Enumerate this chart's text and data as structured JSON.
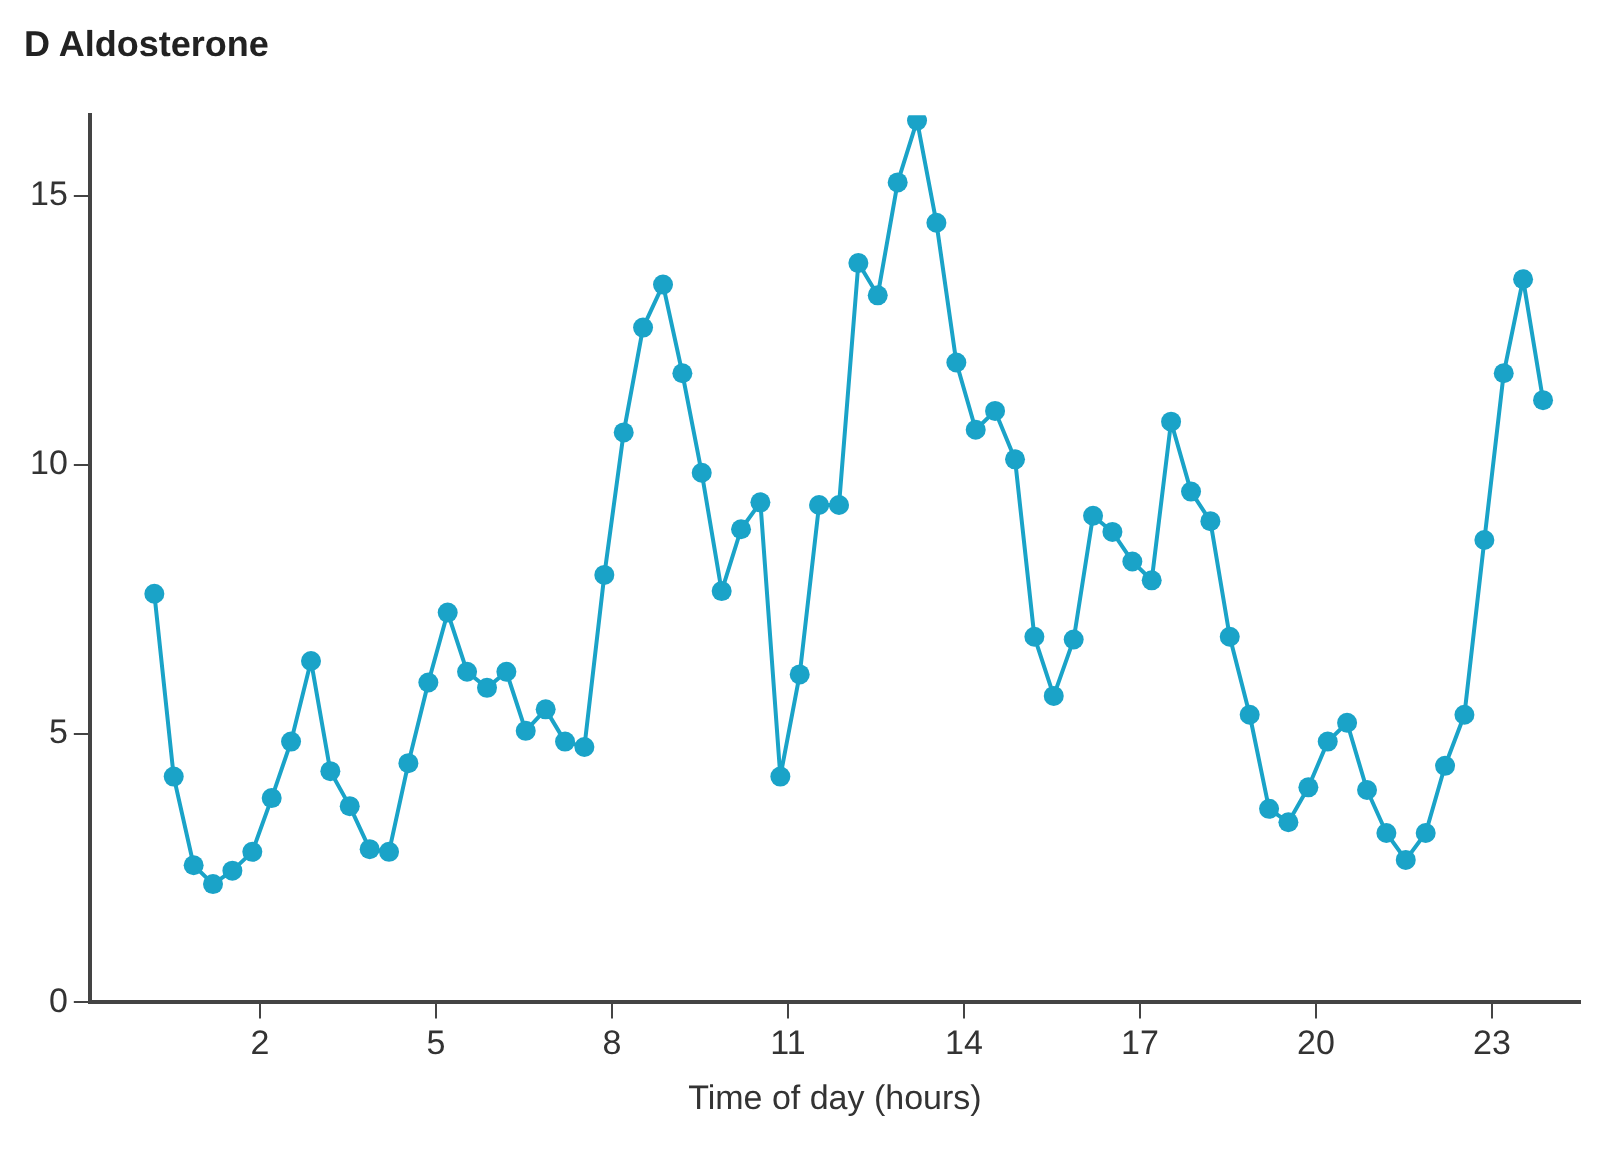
{
  "chart_data": {
    "type": "line",
    "title": "D Aldosterone",
    "xlabel": "Time of day (hours)",
    "x": [
      0.2,
      0.53,
      0.87,
      1.2,
      1.53,
      1.87,
      2.2,
      2.53,
      2.87,
      3.2,
      3.53,
      3.87,
      4.2,
      4.53,
      4.87,
      5.2,
      5.53,
      5.87,
      6.2,
      6.53,
      6.87,
      7.2,
      7.53,
      7.87,
      8.2,
      8.53,
      8.87,
      9.2,
      9.53,
      9.87,
      10.2,
      10.53,
      10.87,
      11.2,
      11.53,
      11.87,
      12.2,
      12.53,
      12.87,
      13.2,
      13.53,
      13.87,
      14.2,
      14.53,
      14.87,
      15.2,
      15.53,
      15.87,
      16.2,
      16.53,
      16.87,
      17.2,
      17.53,
      17.87,
      18.2,
      18.53,
      18.87,
      19.2,
      19.53,
      19.87,
      20.2,
      20.53,
      20.87,
      21.2,
      21.53,
      21.87,
      22.2,
      22.53,
      22.87,
      23.2,
      23.53,
      23.87
    ],
    "series": [
      {
        "color": "#1aa3c8",
        "values": [
          7.6,
          4.2,
          2.55,
          2.2,
          2.45,
          2.8,
          3.8,
          4.85,
          6.35,
          4.3,
          3.65,
          2.85,
          2.8,
          4.45,
          5.95,
          7.25,
          6.15,
          5.85,
          6.15,
          5.05,
          5.45,
          4.85,
          4.75,
          7.95,
          10.6,
          12.55,
          13.35,
          11.7,
          9.85,
          7.65,
          8.8,
          9.3,
          4.2,
          6.1,
          9.25,
          9.25,
          13.75,
          13.15,
          15.25,
          16.4,
          14.5,
          11.9,
          10.65,
          11.0,
          10.1,
          6.8,
          5.7,
          6.75,
          9.05,
          8.75,
          8.2,
          7.85,
          10.8,
          9.5,
          8.95,
          6.8,
          5.35,
          3.6,
          3.35,
          4.0,
          4.85,
          5.2,
          3.95,
          3.15,
          2.65,
          3.15,
          4.4,
          5.35,
          8.6,
          11.7,
          13.45,
          11.2
        ]
      }
    ],
    "xlim": [
      -0.9,
      24.5
    ],
    "xticks": [
      2,
      5,
      8,
      11,
      14,
      17,
      20,
      23
    ],
    "ylim": [
      0,
      16.5
    ],
    "yticks": [
      0,
      5,
      10,
      15
    ],
    "grid": false,
    "legend": false,
    "marker": "circle",
    "line_style": "solid"
  }
}
